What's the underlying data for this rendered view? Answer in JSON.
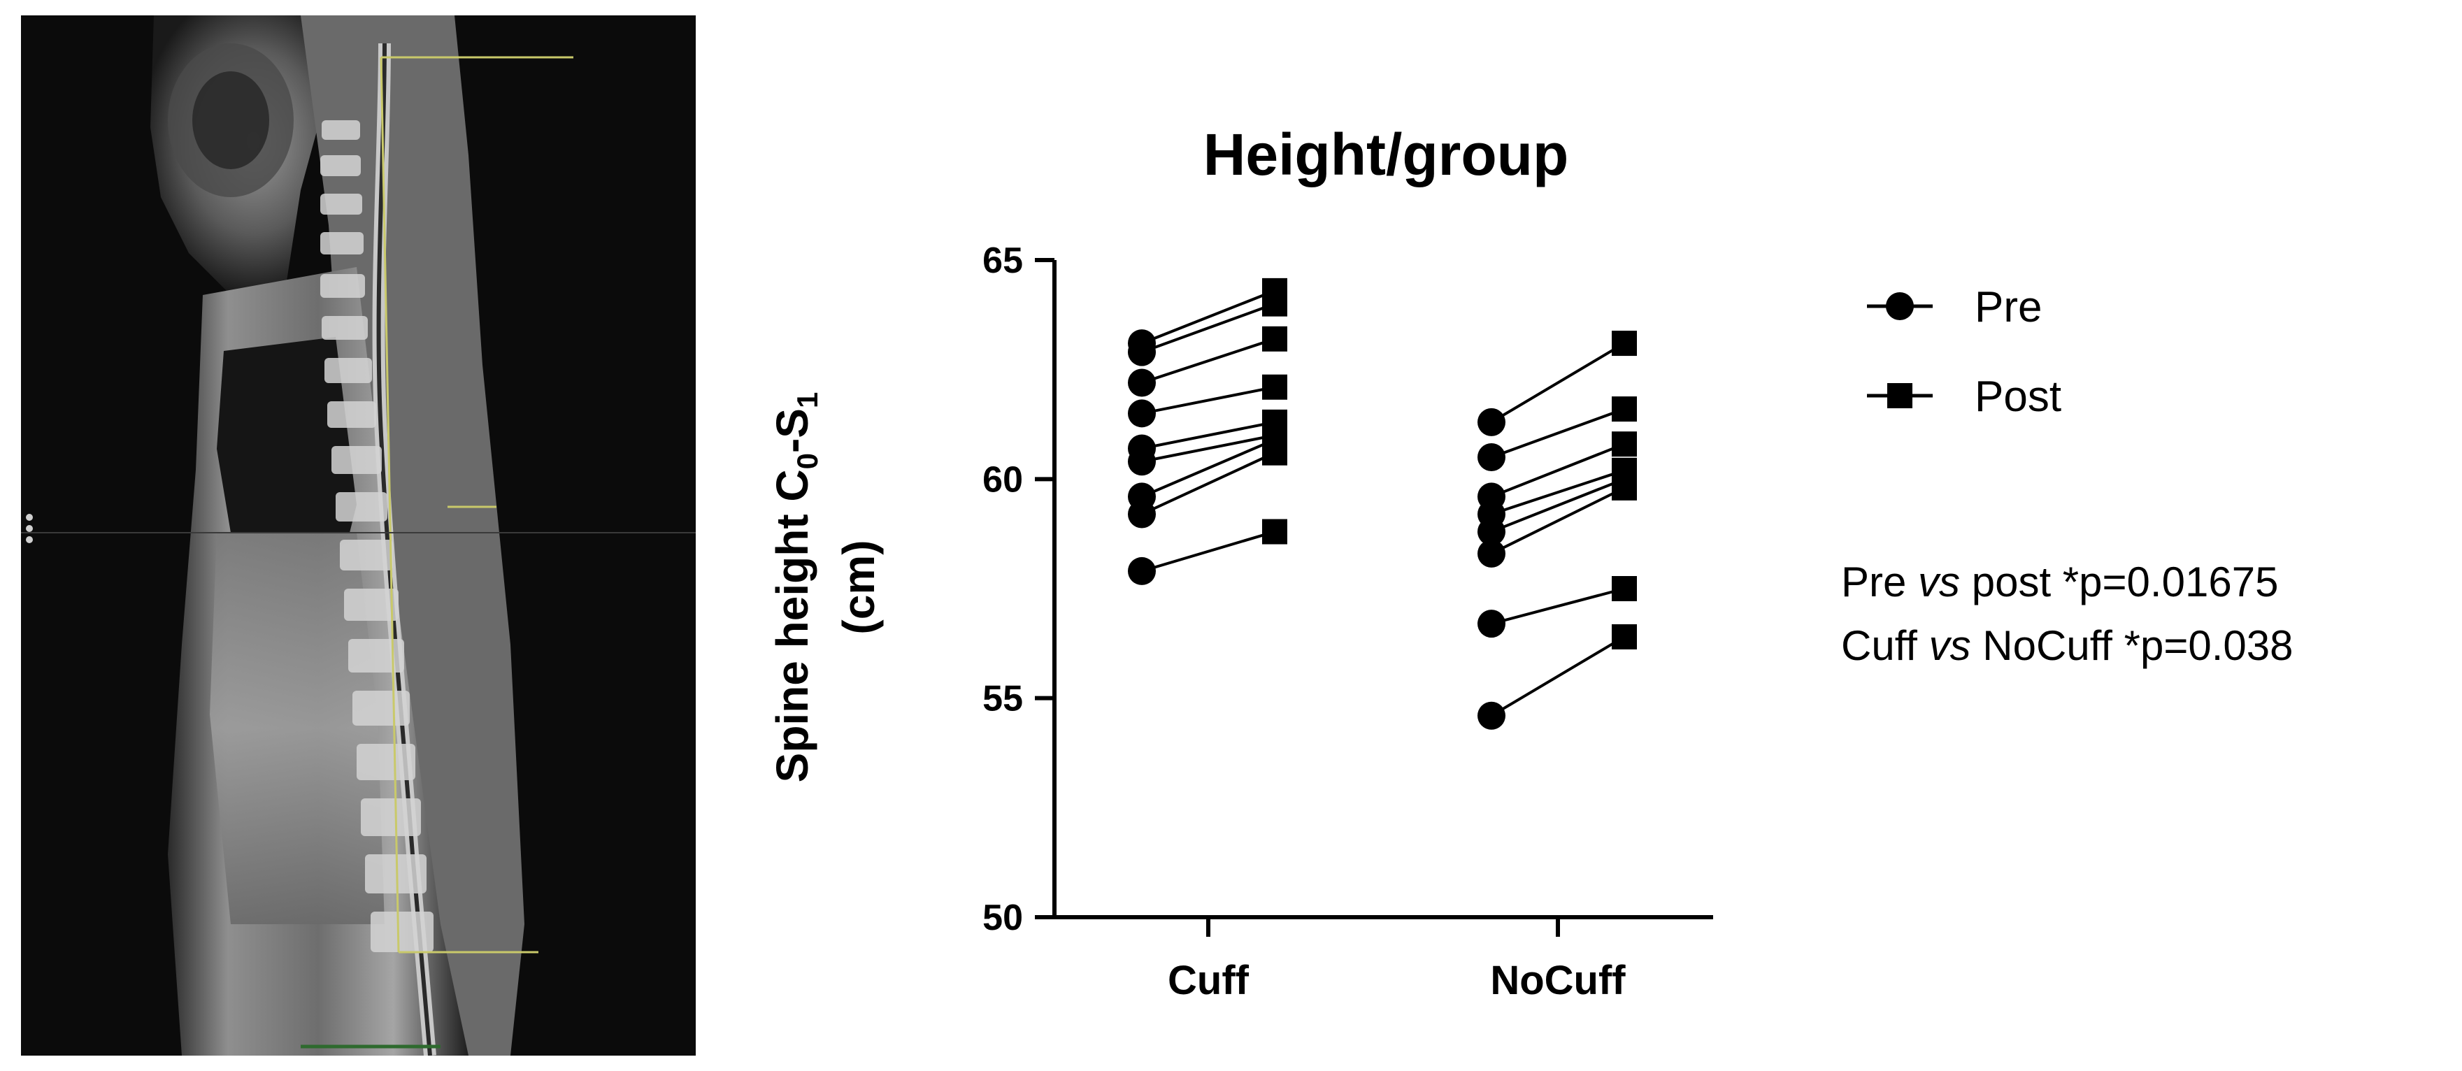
{
  "mri": {
    "description_icon": "sagittal-spine-mri-image"
  },
  "chart_data": {
    "type": "scatter",
    "title": "Height/group",
    "ylabel": {
      "prefix": "Spine height C",
      "sub1": "0",
      "mid": "-S",
      "sub2": "1",
      "units": "(cm)"
    },
    "xlabel": "",
    "ylim": [
      50,
      65
    ],
    "yticks": [
      50,
      55,
      60,
      65
    ],
    "categories": [
      "Cuff",
      "NoCuff"
    ],
    "groups": [
      {
        "category": "Cuff",
        "pairs": [
          [
            63.1,
            64.3
          ],
          [
            62.9,
            64.0
          ],
          [
            62.2,
            63.2
          ],
          [
            61.5,
            62.1
          ],
          [
            60.7,
            61.3
          ],
          [
            60.4,
            61.0
          ],
          [
            59.6,
            60.9
          ],
          [
            59.2,
            60.6
          ],
          [
            57.9,
            58.8
          ]
        ]
      },
      {
        "category": "NoCuff",
        "pairs": [
          [
            61.3,
            63.1
          ],
          [
            60.5,
            61.6
          ],
          [
            59.6,
            60.8
          ],
          [
            59.2,
            60.2
          ],
          [
            58.8,
            60.0
          ],
          [
            58.3,
            59.8
          ],
          [
            56.7,
            57.5
          ],
          [
            54.6,
            56.4
          ]
        ]
      }
    ],
    "series": [
      {
        "name": "Pre",
        "marker": "circle",
        "color": "#000000"
      },
      {
        "name": "Post",
        "marker": "square",
        "color": "#000000"
      }
    ],
    "legend_position": "right",
    "annotations": [
      {
        "before": "Pre ",
        "italic": "vs",
        "after": " post *p=0.01675"
      },
      {
        "before": "Cuff ",
        "italic": "vs",
        "after": " NoCuff *p=0.038"
      }
    ]
  }
}
